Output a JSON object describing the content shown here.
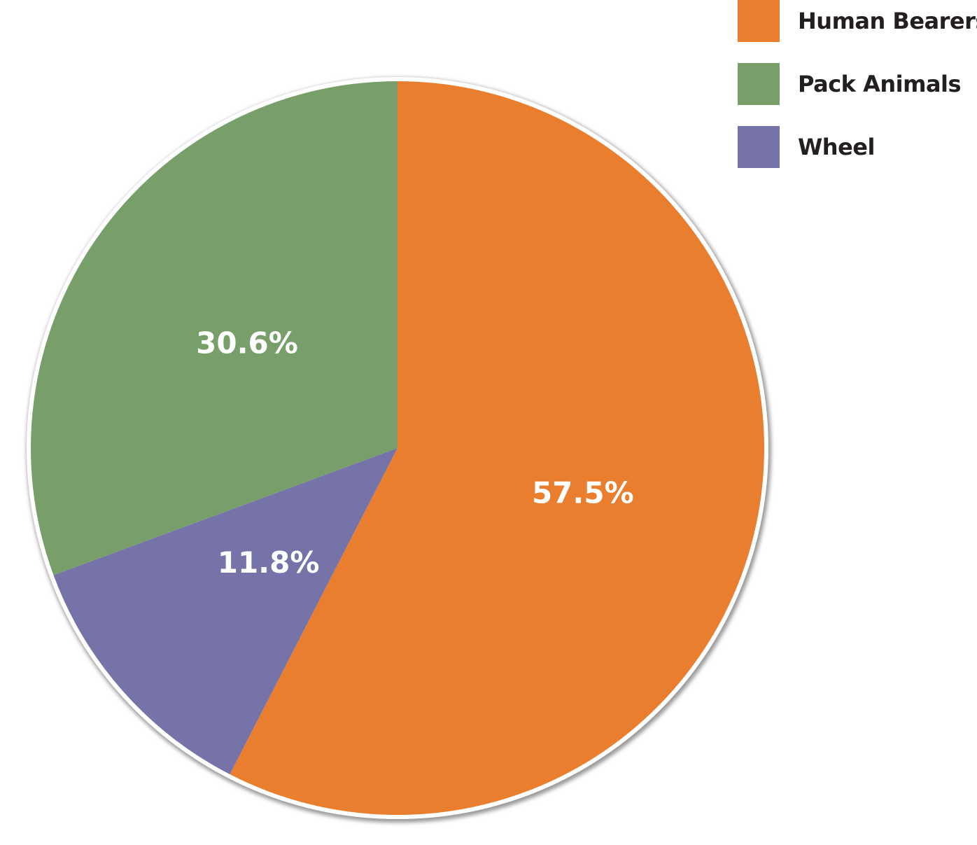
{
  "chart_data": {
    "type": "pie",
    "title": "",
    "categories": [
      "Human Bearers",
      "Pack Animals",
      "Wheel"
    ],
    "values": [
      57.5,
      30.6,
      11.8
    ],
    "value_labels": [
      "57.5%",
      "30.6%",
      "11.8%"
    ],
    "colors": [
      "#e97e2f",
      "#789f6a",
      "#7573a8"
    ],
    "slice_order": [
      "Human Bearers",
      "Wheel",
      "Pack Animals"
    ],
    "start": "12 o'clock, clockwise",
    "legend": {
      "placement": "top-right",
      "entries": [
        {
          "label": "Human Bearers",
          "color": "#e97e2f"
        },
        {
          "label": "Pack Animals",
          "color": "#789f6a"
        },
        {
          "label": "Wheel",
          "color": "#7573a8"
        }
      ]
    }
  }
}
